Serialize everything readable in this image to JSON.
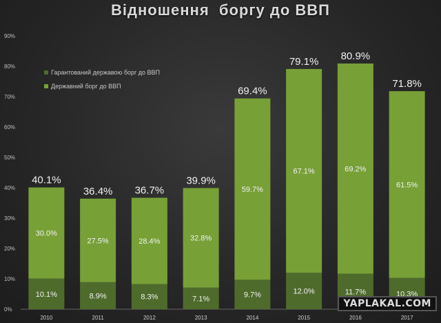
{
  "chart_data": {
    "type": "bar",
    "stacked": true,
    "title": "Відношення  боргу до ВВП",
    "categories": [
      "2010",
      "2011",
      "2012",
      "2013",
      "2014",
      "2015",
      "2016",
      "2017"
    ],
    "series": [
      {
        "name": "Гарантований державою борг до ВВП",
        "color": "#4f6b2c",
        "values": [
          10.1,
          8.9,
          8.3,
          7.1,
          9.7,
          12.0,
          11.7,
          10.3
        ],
        "labels": [
          "10.1%",
          "8.9%",
          "8.3%",
          "7.1%",
          "9.7%",
          "12.0%",
          "11.7%",
          "10.3%"
        ]
      },
      {
        "name": "Державний борг до ВВП",
        "color": "#77a037",
        "values": [
          30.0,
          27.5,
          28.4,
          32.8,
          59.7,
          67.1,
          69.2,
          61.5
        ],
        "labels": [
          "30.0%",
          "27.5%",
          "28.4%",
          "32.8%",
          "59.7%",
          "67.1%",
          "69.2%",
          "61.5%"
        ]
      }
    ],
    "totals": [
      "40.1%",
      "36.4%",
      "36.7%",
      "39.9%",
      "69.4%",
      "79.1%",
      "80.9%",
      "71.8%"
    ],
    "total_values": [
      40.1,
      36.4,
      36.7,
      39.9,
      69.4,
      79.1,
      80.9,
      71.8
    ],
    "ylim": [
      0,
      90
    ],
    "yticks": [
      "0%",
      "10%",
      "20%",
      "30%",
      "40%",
      "50%",
      "60%",
      "70%",
      "80%",
      "90%"
    ],
    "ytick_values": [
      0,
      10,
      20,
      30,
      40,
      50,
      60,
      70,
      80,
      90
    ],
    "legend_position": "top-left",
    "grid": false,
    "xlabel": "",
    "ylabel": ""
  },
  "watermark": "YAPLAKAL.COM"
}
